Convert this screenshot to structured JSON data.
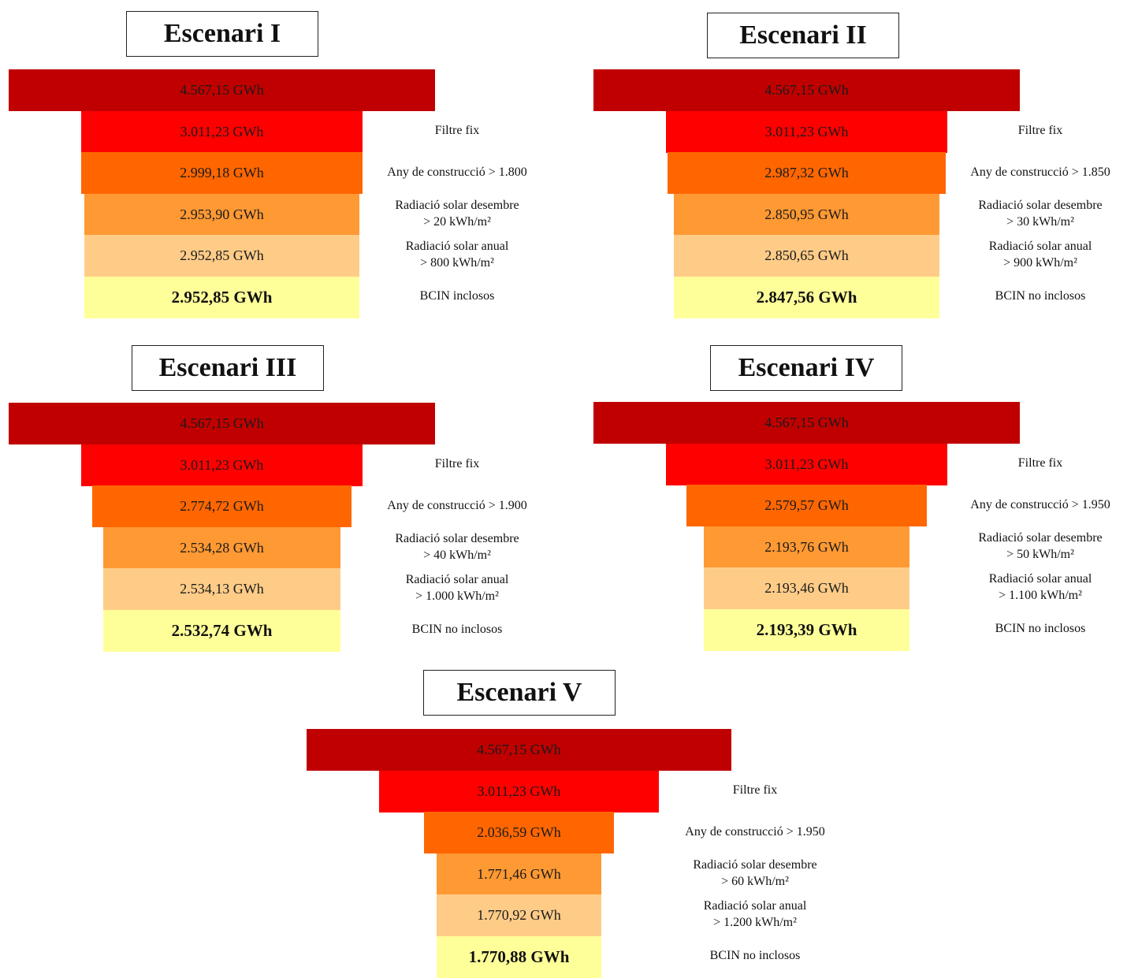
{
  "colors": [
    "#c00000",
    "#ff0000",
    "#ff6600",
    "#ff9933",
    "#ffcc88",
    "#ffff99"
  ],
  "scenarios": [
    {
      "title": "Escenari I",
      "bars": [
        "4.567,15 GWh",
        "3.011,23 GWh",
        "2.999,18 GWh",
        "2.953,90 GWh",
        "2.952,85 GWh",
        "2.952,85 GWh"
      ],
      "filters": [
        [
          "Filtre fix"
        ],
        [
          "Any de construcció > 1.800"
        ],
        [
          "Radiació solar desembre",
          "> 20 kWh/m²"
        ],
        [
          "Radiació solar anual",
          "> 800 kWh/m²"
        ],
        [
          "BCIN inclosos"
        ]
      ]
    },
    {
      "title": "Escenari II",
      "bars": [
        "4.567,15 GWh",
        "3.011,23 GWh",
        "2.987,32 GWh",
        "2.850,95 GWh",
        "2.850,65 GWh",
        "2.847,56 GWh"
      ],
      "filters": [
        [
          "Filtre fix"
        ],
        [
          "Any de construcció > 1.850"
        ],
        [
          "Radiació solar desembre",
          "> 30 kWh/m²"
        ],
        [
          "Radiació solar anual",
          "> 900 kWh/m²"
        ],
        [
          "BCIN no inclosos"
        ]
      ]
    },
    {
      "title": "Escenari III",
      "bars": [
        "4.567,15 GWh",
        "3.011,23 GWh",
        "2.774,72 GWh",
        "2.534,28 GWh",
        "2.534,13 GWh",
        "2.532,74 GWh"
      ],
      "filters": [
        [
          "Filtre fix"
        ],
        [
          "Any de construcció > 1.900"
        ],
        [
          "Radiació solar desembre",
          "> 40 kWh/m²"
        ],
        [
          "Radiació solar anual",
          "> 1.000 kWh/m²"
        ],
        [
          "BCIN no inclosos"
        ]
      ]
    },
    {
      "title": "Escenari IV",
      "bars": [
        "4.567,15 GWh",
        "3.011,23 GWh",
        "2.579,57 GWh",
        "2.193,76 GWh",
        "2.193,46 GWh",
        "2.193,39 GWh"
      ],
      "filters": [
        [
          "Filtre fix"
        ],
        [
          "Any de construcció > 1.950"
        ],
        [
          "Radiació solar desembre",
          "> 50 kWh/m²"
        ],
        [
          "Radiació solar anual",
          "> 1.100 kWh/m²"
        ],
        [
          "BCIN no inclosos"
        ]
      ]
    },
    {
      "title": "Escenari V",
      "bars": [
        "4.567,15 GWh",
        "3.011,23 GWh",
        "2.036,59 GWh",
        "1.771,46 GWh",
        "1.770,92 GWh",
        "1.770,88 GWh"
      ],
      "filters": [
        [
          "Filtre fix"
        ],
        [
          "Any de construcció > 1.950"
        ],
        [
          "Radiació solar desembre",
          "> 60 kWh/m²"
        ],
        [
          "Radiació solar anual",
          "> 1.200 kWh/m²"
        ],
        [
          "BCIN no inclosos"
        ]
      ]
    }
  ]
}
